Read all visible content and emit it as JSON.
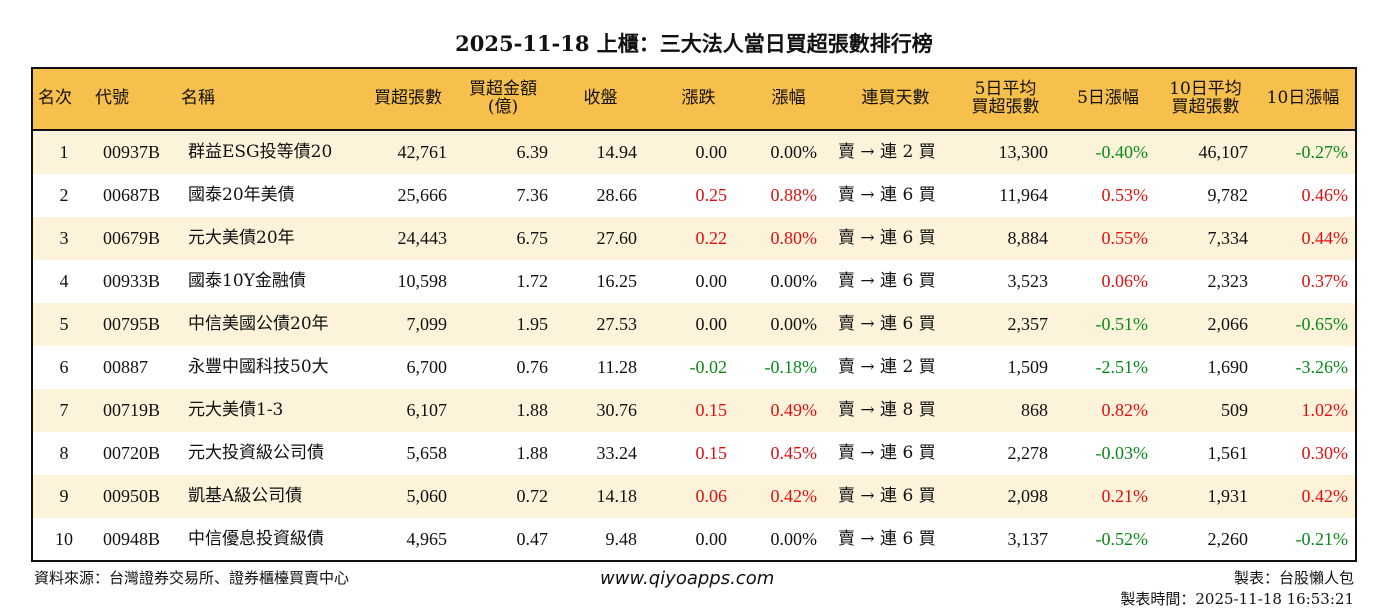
{
  "title": "2025-11-18 上櫃：三大法人當日買超張數排行榜",
  "colors": {
    "header_bg": "#F7BF4B",
    "row_alt": "#FDF2DA",
    "up": "#E01010",
    "down": "#0B8A1A"
  },
  "headers": [
    "名次",
    "代號",
    "名稱",
    "買超張數",
    "買超金額\n(億)",
    "收盤",
    "漲跌",
    "漲幅",
    "連買天數",
    "5日平均\n買超張數",
    "5日漲幅",
    "10日平均\n買超張數",
    "10日漲幅"
  ],
  "rows": [
    [
      "1",
      "00937B",
      "群益ESG投等債20",
      "42,761",
      "6.39",
      "14.94",
      "0.00",
      "0.00%",
      "賣 → 連 2 買",
      "13,300",
      "-0.40%",
      "46,107",
      "-0.27%"
    ],
    [
      "2",
      "00687B",
      "國泰20年美債",
      "25,666",
      "7.36",
      "28.66",
      "0.25",
      "0.88%",
      "賣 → 連 6 買",
      "11,964",
      "0.53%",
      "9,782",
      "0.46%"
    ],
    [
      "3",
      "00679B",
      "元大美債20年",
      "24,443",
      "6.75",
      "27.60",
      "0.22",
      "0.80%",
      "賣 → 連 6 買",
      "8,884",
      "0.55%",
      "7,334",
      "0.44%"
    ],
    [
      "4",
      "00933B",
      "國泰10Y金融債",
      "10,598",
      "1.72",
      "16.25",
      "0.00",
      "0.00%",
      "賣 → 連 6 買",
      "3,523",
      "0.06%",
      "2,323",
      "0.37%"
    ],
    [
      "5",
      "00795B",
      "中信美國公債20年",
      "7,099",
      "1.95",
      "27.53",
      "0.00",
      "0.00%",
      "賣 → 連 6 買",
      "2,357",
      "-0.51%",
      "2,066",
      "-0.65%"
    ],
    [
      "6",
      "00887",
      "永豐中國科技50大",
      "6,700",
      "0.76",
      "11.28",
      "-0.02",
      "-0.18%",
      "賣 → 連 2 買",
      "1,509",
      "-2.51%",
      "1,690",
      "-3.26%"
    ],
    [
      "7",
      "00719B",
      "元大美債1-3",
      "6,107",
      "1.88",
      "30.76",
      "0.15",
      "0.49%",
      "賣 → 連 8 買",
      "868",
      "0.82%",
      "509",
      "1.02%"
    ],
    [
      "8",
      "00720B",
      "元大投資級公司債",
      "5,658",
      "1.88",
      "33.24",
      "0.15",
      "0.45%",
      "賣 → 連 6 買",
      "2,278",
      "-0.03%",
      "1,561",
      "0.30%"
    ],
    [
      "9",
      "00950B",
      "凱基A級公司債",
      "5,060",
      "0.72",
      "14.18",
      "0.06",
      "0.42%",
      "賣 → 連 6 買",
      "2,098",
      "0.21%",
      "1,931",
      "0.42%"
    ],
    [
      "10",
      "00948B",
      "中信優息投資級債",
      "4,965",
      "0.47",
      "9.48",
      "0.00",
      "0.00%",
      "賣 → 連 6 買",
      "3,137",
      "-0.52%",
      "2,260",
      "-0.21%"
    ]
  ],
  "footer": {
    "source": "資料來源：台灣證券交易所、證券櫃檯買賣中心",
    "site": "www.qiyoapps.com",
    "maker": "製表：台股懶人包",
    "time": "製表時間：2025-11-18 16:53:21"
  }
}
